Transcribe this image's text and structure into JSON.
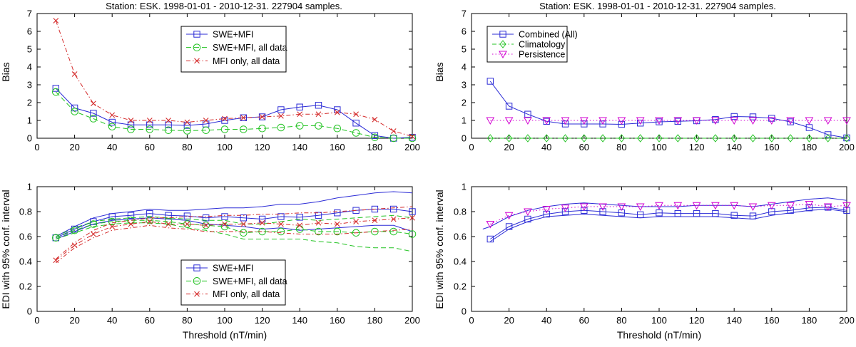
{
  "colors": {
    "blue": "#2b2bd6",
    "green": "#22c322",
    "red": "#d42a2a",
    "magenta": "#d200d2",
    "axis": "#000000"
  },
  "chart_data": [
    {
      "id": "tl",
      "type": "line",
      "title": "Station: ESK. 1998-01-01 - 2010-12-31. 227904 samples.",
      "xlabel": "",
      "ylabel": "Bias",
      "xlim": [
        0,
        200
      ],
      "ylim": [
        0,
        7
      ],
      "xticks": [
        0,
        20,
        40,
        60,
        80,
        100,
        120,
        140,
        160,
        180,
        200
      ],
      "yticks": [
        0,
        1,
        2,
        3,
        4,
        5,
        6,
        7
      ],
      "legend": "upper-center",
      "series": [
        {
          "name": "SWE+MFI",
          "color": "blue",
          "dash": "",
          "marker": "square",
          "x": [
            10,
            20,
            30,
            40,
            50,
            60,
            70,
            80,
            90,
            100,
            110,
            120,
            130,
            140,
            150,
            160,
            170,
            180,
            190,
            200
          ],
          "y": [
            2.8,
            1.7,
            1.4,
            0.9,
            0.75,
            0.75,
            0.75,
            0.72,
            0.8,
            1.0,
            1.15,
            1.2,
            1.6,
            1.75,
            1.85,
            1.6,
            0.85,
            0.15,
            0.0,
            0.05
          ]
        },
        {
          "name": "SWE+MFI, all data",
          "color": "green",
          "dash": "7,4",
          "marker": "circle",
          "x": [
            10,
            20,
            30,
            40,
            50,
            60,
            70,
            80,
            90,
            100,
            110,
            120,
            130,
            140,
            150,
            160,
            170,
            180,
            190,
            200
          ],
          "y": [
            2.6,
            1.5,
            1.1,
            0.65,
            0.5,
            0.5,
            0.45,
            0.42,
            0.45,
            0.5,
            0.5,
            0.55,
            0.6,
            0.7,
            0.7,
            0.55,
            0.3,
            0.05,
            0.0,
            0.0
          ]
        },
        {
          "name": "MFI only, all data",
          "color": "red",
          "dash": "6,3,1.5,3",
          "marker": "x",
          "x": [
            10,
            20,
            30,
            40,
            50,
            60,
            70,
            80,
            90,
            100,
            110,
            120,
            130,
            140,
            150,
            160,
            170,
            180,
            190,
            200
          ],
          "y": [
            6.6,
            3.6,
            1.95,
            1.3,
            1.0,
            1.0,
            1.0,
            0.9,
            1.0,
            1.1,
            1.15,
            1.2,
            1.25,
            1.35,
            1.35,
            1.45,
            1.35,
            1.05,
            0.4,
            0.1
          ]
        }
      ]
    },
    {
      "id": "tr",
      "type": "line",
      "title": "Station: ESK. 1998-01-01 - 2010-12-31. 227904 samples.",
      "xlabel": "",
      "ylabel": "Bias",
      "xlim": [
        0,
        200
      ],
      "ylim": [
        0,
        7
      ],
      "xticks": [
        0,
        20,
        40,
        60,
        80,
        100,
        120,
        140,
        160,
        180,
        200
      ],
      "yticks": [
        0,
        1,
        2,
        3,
        4,
        5,
        6,
        7
      ],
      "legend": "upper-left",
      "series": [
        {
          "name": "Combined (All)",
          "color": "blue",
          "dash": "",
          "marker": "square",
          "x": [
            10,
            20,
            30,
            40,
            50,
            60,
            70,
            80,
            90,
            100,
            110,
            120,
            130,
            140,
            150,
            160,
            170,
            180,
            190,
            200
          ],
          "y": [
            3.2,
            1.8,
            1.35,
            0.95,
            0.8,
            0.8,
            0.8,
            0.78,
            0.85,
            0.92,
            0.95,
            0.98,
            1.05,
            1.22,
            1.2,
            1.12,
            0.92,
            0.6,
            0.2,
            0.02
          ]
        },
        {
          "name": "Climatology",
          "color": "green",
          "dash": "6,3,1.5,3",
          "marker": "diamond",
          "x": [
            10,
            20,
            30,
            40,
            50,
            60,
            70,
            80,
            90,
            100,
            110,
            120,
            130,
            140,
            150,
            160,
            170,
            180,
            190,
            200
          ],
          "y": [
            0,
            0,
            0,
            0,
            0,
            0,
            0,
            0,
            0,
            0,
            0,
            0,
            0,
            0,
            0,
            0,
            0,
            0,
            0,
            0
          ]
        },
        {
          "name": "Persistence",
          "color": "magenta",
          "dash": "1.5,3",
          "marker": "triangle-down",
          "x": [
            10,
            20,
            30,
            40,
            50,
            60,
            70,
            80,
            90,
            100,
            110,
            120,
            130,
            140,
            150,
            160,
            170,
            180,
            190,
            200
          ],
          "y": [
            1,
            1,
            1,
            1,
            1,
            1,
            1,
            1,
            1,
            1,
            1,
            1,
            1,
            1,
            1,
            1,
            1,
            1,
            1,
            1
          ]
        }
      ]
    },
    {
      "id": "bl",
      "type": "line",
      "title": "",
      "xlabel": "Threshold (nT/min)",
      "ylabel": "EDI with 95% conf. interval",
      "xlim": [
        0,
        200
      ],
      "ylim": [
        0,
        1
      ],
      "xticks": [
        0,
        20,
        40,
        60,
        80,
        100,
        120,
        140,
        160,
        180,
        200
      ],
      "yticks": [
        0,
        0.2,
        0.4,
        0.6,
        0.8,
        1
      ],
      "legend": "lower-center",
      "series": [
        {
          "name": "SWE+MFI",
          "color": "blue",
          "dash": "",
          "marker": "square",
          "x": [
            10,
            20,
            30,
            40,
            50,
            60,
            70,
            80,
            90,
            100,
            110,
            120,
            130,
            140,
            150,
            160,
            170,
            180,
            190,
            200
          ],
          "y": [
            0.59,
            0.66,
            0.72,
            0.76,
            0.77,
            0.785,
            0.77,
            0.765,
            0.75,
            0.76,
            0.75,
            0.74,
            0.76,
            0.755,
            0.77,
            0.79,
            0.81,
            0.82,
            0.82,
            0.8
          ]
        },
        {
          "name": "SWE+MFI upper",
          "color": "blue",
          "dash": "",
          "marker": "none",
          "x": [
            10,
            20,
            30,
            40,
            50,
            60,
            70,
            80,
            90,
            100,
            110,
            120,
            130,
            140,
            150,
            160,
            170,
            180,
            190,
            200
          ],
          "y": [
            0.6,
            0.68,
            0.75,
            0.785,
            0.8,
            0.82,
            0.81,
            0.81,
            0.82,
            0.83,
            0.83,
            0.84,
            0.86,
            0.86,
            0.88,
            0.91,
            0.93,
            0.95,
            0.96,
            0.95
          ]
        },
        {
          "name": "SWE+MFI lower",
          "color": "blue",
          "dash": "",
          "marker": "none",
          "x": [
            10,
            20,
            30,
            40,
            50,
            60,
            70,
            80,
            90,
            100,
            110,
            120,
            130,
            140,
            150,
            160,
            170,
            180,
            190,
            200
          ],
          "y": [
            0.58,
            0.64,
            0.7,
            0.73,
            0.74,
            0.75,
            0.74,
            0.73,
            0.7,
            0.69,
            0.68,
            0.66,
            0.67,
            0.65,
            0.66,
            0.67,
            0.68,
            0.69,
            0.69,
            0.64
          ]
        },
        {
          "name": "SWE+MFI, all data",
          "color": "green",
          "dash": "7,4",
          "marker": "circle",
          "x": [
            10,
            20,
            30,
            40,
            50,
            60,
            70,
            80,
            90,
            100,
            110,
            120,
            130,
            140,
            150,
            160,
            170,
            180,
            190,
            200
          ],
          "y": [
            0.59,
            0.65,
            0.7,
            0.72,
            0.73,
            0.73,
            0.72,
            0.7,
            0.69,
            0.68,
            0.63,
            0.64,
            0.64,
            0.66,
            0.64,
            0.64,
            0.63,
            0.64,
            0.64,
            0.62
          ]
        },
        {
          "name": "SWE+MFI, all data upper",
          "color": "green",
          "dash": "7,4",
          "marker": "none",
          "x": [
            10,
            20,
            30,
            40,
            50,
            60,
            70,
            80,
            90,
            100,
            110,
            120,
            130,
            140,
            150,
            160,
            170,
            180,
            190,
            200
          ],
          "y": [
            0.6,
            0.67,
            0.72,
            0.74,
            0.75,
            0.76,
            0.75,
            0.74,
            0.73,
            0.73,
            0.7,
            0.7,
            0.72,
            0.74,
            0.73,
            0.74,
            0.75,
            0.76,
            0.77,
            0.75
          ]
        },
        {
          "name": "SWE+MFI, all data lower",
          "color": "green",
          "dash": "7,4",
          "marker": "none",
          "x": [
            10,
            20,
            30,
            40,
            50,
            60,
            70,
            80,
            90,
            100,
            110,
            120,
            130,
            140,
            150,
            160,
            170,
            180,
            190,
            200
          ],
          "y": [
            0.58,
            0.63,
            0.68,
            0.7,
            0.71,
            0.71,
            0.7,
            0.67,
            0.65,
            0.62,
            0.58,
            0.58,
            0.58,
            0.58,
            0.56,
            0.55,
            0.52,
            0.51,
            0.51,
            0.48
          ]
        },
        {
          "name": "MFI only, all data",
          "color": "red",
          "dash": "6,3,1.5,3",
          "marker": "x",
          "x": [
            10,
            20,
            30,
            40,
            50,
            60,
            70,
            80,
            90,
            100,
            110,
            120,
            130,
            140,
            150,
            160,
            170,
            180,
            190,
            200
          ],
          "y": [
            0.41,
            0.53,
            0.62,
            0.68,
            0.7,
            0.72,
            0.7,
            0.7,
            0.69,
            0.7,
            0.7,
            0.71,
            0.7,
            0.69,
            0.71,
            0.7,
            0.72,
            0.73,
            0.74,
            0.75
          ]
        },
        {
          "name": "MFI only, all data upper",
          "color": "red",
          "dash": "6,3,1.5,3",
          "marker": "none",
          "x": [
            10,
            20,
            30,
            40,
            50,
            60,
            70,
            80,
            90,
            100,
            110,
            120,
            130,
            140,
            150,
            160,
            170,
            180,
            190,
            200
          ],
          "y": [
            0.42,
            0.55,
            0.65,
            0.71,
            0.73,
            0.75,
            0.75,
            0.76,
            0.76,
            0.77,
            0.77,
            0.78,
            0.78,
            0.79,
            0.79,
            0.8,
            0.81,
            0.82,
            0.83,
            0.84
          ]
        },
        {
          "name": "MFI only, all data lower",
          "color": "red",
          "dash": "6,3,1.5,3",
          "marker": "none",
          "x": [
            10,
            20,
            30,
            40,
            50,
            60,
            70,
            80,
            90,
            100,
            110,
            120,
            130,
            140,
            150,
            160,
            170,
            180,
            190,
            200
          ],
          "y": [
            0.39,
            0.51,
            0.59,
            0.65,
            0.67,
            0.69,
            0.67,
            0.66,
            0.64,
            0.64,
            0.64,
            0.64,
            0.63,
            0.62,
            0.62,
            0.62,
            0.63,
            0.64,
            0.65,
            0.66
          ]
        }
      ],
      "legend_entries": [
        "SWE+MFI",
        "SWE+MFI, all data",
        "MFI only, all data"
      ]
    },
    {
      "id": "br",
      "type": "line",
      "title": "",
      "xlabel": "Threshold (nT/min)",
      "ylabel": "EDI with 95% conf. interval",
      "xlim": [
        0,
        200
      ],
      "ylim": [
        0,
        1
      ],
      "xticks": [
        0,
        20,
        40,
        60,
        80,
        100,
        120,
        140,
        160,
        180,
        200
      ],
      "yticks": [
        0,
        0.2,
        0.4,
        0.6,
        0.8,
        1
      ],
      "legend": "none",
      "series": [
        {
          "name": "Combined (All)",
          "color": "blue",
          "dash": "",
          "marker": "square",
          "x": [
            10,
            20,
            30,
            40,
            50,
            60,
            70,
            80,
            90,
            100,
            110,
            120,
            130,
            140,
            150,
            160,
            170,
            180,
            190,
            200
          ],
          "y": [
            0.58,
            0.68,
            0.74,
            0.78,
            0.8,
            0.81,
            0.8,
            0.79,
            0.775,
            0.79,
            0.785,
            0.785,
            0.785,
            0.77,
            0.765,
            0.8,
            0.81,
            0.83,
            0.835,
            0.81
          ]
        },
        {
          "name": "Combined upper",
          "color": "blue",
          "dash": "",
          "marker": "none",
          "x": [
            6,
            10,
            20,
            30,
            40,
            50,
            60,
            70,
            80,
            90,
            100,
            110,
            120,
            130,
            140,
            150,
            160,
            170,
            180,
            190,
            200
          ],
          "y": [
            0.66,
            0.68,
            0.76,
            0.81,
            0.84,
            0.86,
            0.87,
            0.86,
            0.85,
            0.84,
            0.84,
            0.84,
            0.85,
            0.85,
            0.85,
            0.84,
            0.86,
            0.88,
            0.9,
            0.91,
            0.89
          ]
        },
        {
          "name": "Combined lower",
          "color": "blue",
          "dash": "",
          "marker": "none",
          "x": [
            10,
            20,
            30,
            40,
            50,
            60,
            70,
            80,
            90,
            100,
            110,
            120,
            130,
            140,
            150,
            160,
            170,
            180,
            190,
            200
          ],
          "y": [
            0.56,
            0.66,
            0.72,
            0.76,
            0.77,
            0.78,
            0.77,
            0.76,
            0.75,
            0.76,
            0.76,
            0.76,
            0.76,
            0.75,
            0.74,
            0.77,
            0.79,
            0.81,
            0.82,
            0.8
          ]
        },
        {
          "name": "Persistence",
          "color": "magenta",
          "dash": "1.5,3",
          "marker": "triangle-down",
          "x": [
            10,
            20,
            30,
            40,
            50,
            60,
            70,
            80,
            90,
            100,
            110,
            120,
            130,
            140,
            150,
            160,
            170,
            180,
            190,
            200
          ],
          "y": [
            0.7,
            0.77,
            0.8,
            0.82,
            0.83,
            0.84,
            0.84,
            0.84,
            0.84,
            0.85,
            0.85,
            0.85,
            0.85,
            0.85,
            0.84,
            0.85,
            0.85,
            0.86,
            0.84,
            0.85
          ]
        }
      ]
    }
  ]
}
